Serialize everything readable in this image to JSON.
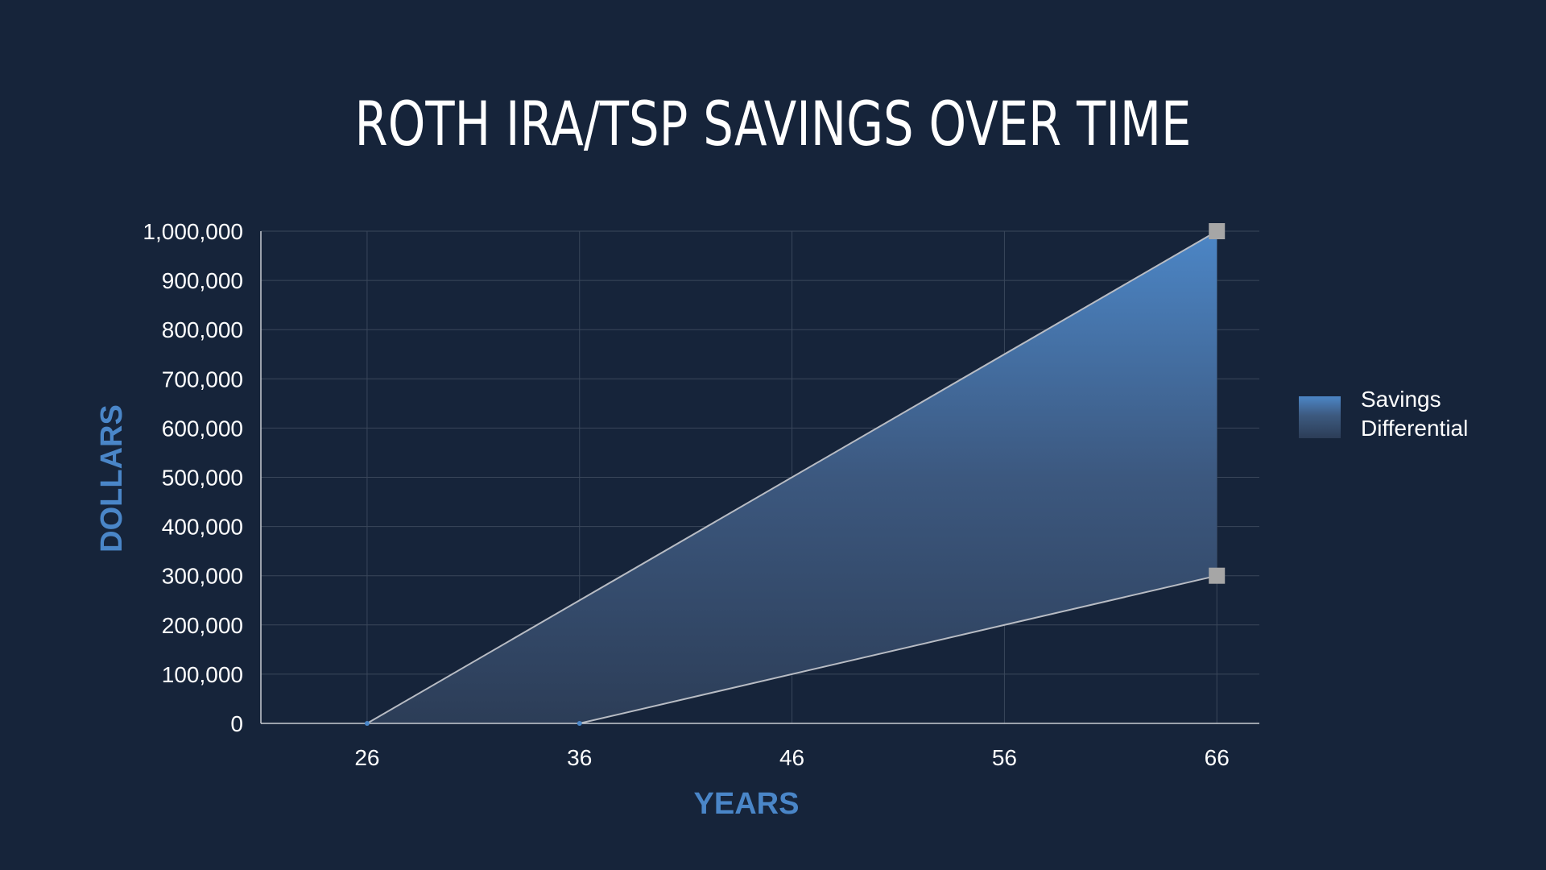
{
  "chart_data": {
    "type": "area",
    "title": "ROTH IRA/TSP SAVINGS OVER TIME",
    "xlabel": "YEARS",
    "ylabel": "DOLLARS",
    "x_ticks": [
      26,
      36,
      46,
      56,
      66
    ],
    "y_ticks": [
      0,
      100000,
      200000,
      300000,
      400000,
      500000,
      600000,
      700000,
      800000,
      900000,
      1000000
    ],
    "y_tick_labels": [
      "0",
      "100,000",
      "200,000",
      "300,000",
      "400,000",
      "500,000",
      "600,000",
      "700,000",
      "800,000",
      "900,000",
      "1,000,000"
    ],
    "xlim": [
      21,
      68
    ],
    "ylim": [
      0,
      1000000
    ],
    "grid": true,
    "legend_position": "right",
    "series": [
      {
        "x": [
          26,
          66
        ],
        "y": [
          0,
          1000000
        ]
      },
      {
        "x": [
          36,
          66
        ],
        "y": [
          0,
          300000
        ]
      }
    ],
    "fill_between": {
      "name": "Savings Differential"
    },
    "colors": {
      "background": "#16243a",
      "accent": "#4a86c8",
      "fill_top": "#4c86c6",
      "fill_bottom": "#2c3d57",
      "line": "#b8bcc4",
      "marker": "#a6a6a6",
      "grid": "#3a475b",
      "text": "#ffffff"
    }
  },
  "legend": {
    "items": [
      {
        "label": "Savings Differential",
        "icon": "gradient-swatch"
      }
    ]
  }
}
